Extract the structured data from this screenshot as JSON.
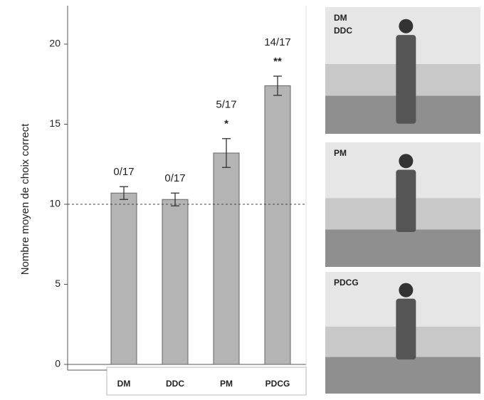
{
  "chart_data": {
    "type": "bar",
    "y_label": "Nombre moyen de choix correct",
    "categories": [
      "DM",
      "DDC",
      "PM",
      "PDCG"
    ],
    "values": [
      10.7,
      10.3,
      13.2,
      17.4
    ],
    "errors": [
      0.4,
      0.4,
      0.9,
      0.6
    ],
    "annotations": [
      "0/17",
      "0/17",
      "5/17",
      "14/17"
    ],
    "significance": [
      null,
      null,
      "*",
      "**"
    ],
    "reference_line": 10,
    "color": "#b4b4b4",
    "ylim": [
      0,
      22.4
    ],
    "yticks": [
      0,
      5,
      10,
      15,
      20
    ]
  },
  "panels": [
    {
      "label_lines": [
        "DM",
        "DDC"
      ]
    },
    {
      "label_lines": [
        "PM"
      ]
    },
    {
      "label_lines": [
        "PDCG"
      ]
    }
  ]
}
